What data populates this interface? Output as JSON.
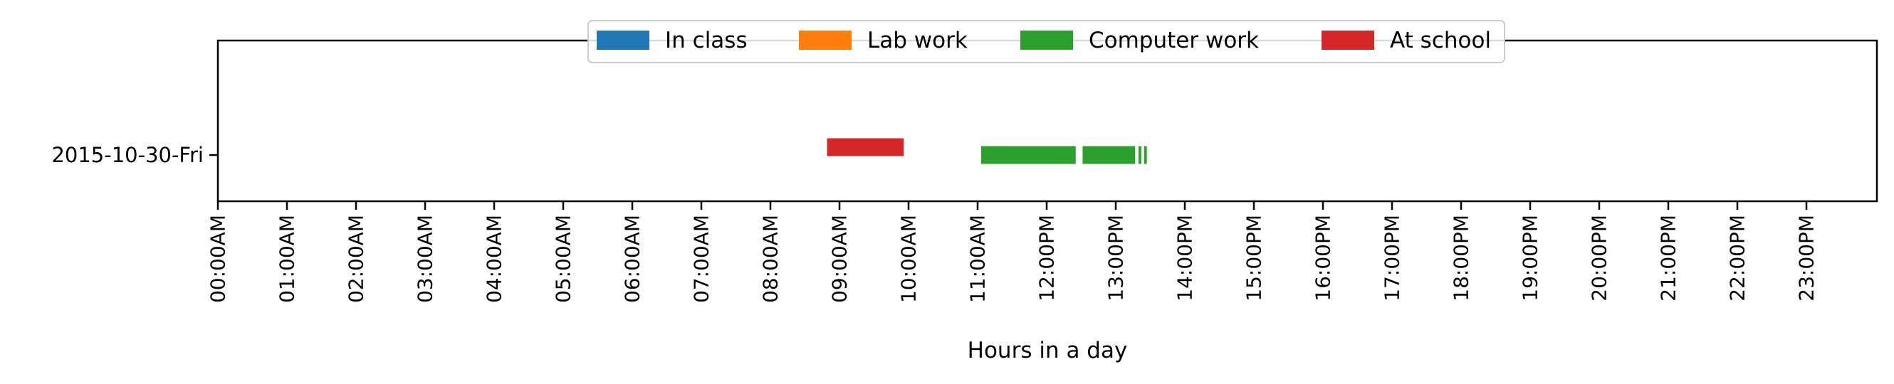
{
  "chart_data": {
    "type": "bar",
    "orientation": "horizontal-timeline",
    "title": "",
    "xlabel": "Hours in a day",
    "ylabel": "",
    "xlim": [
      0,
      24
    ],
    "categories": [
      "2015-10-30-Fri"
    ],
    "x_tick_labels": [
      "00:00AM",
      "01:00AM",
      "02:00AM",
      "03:00AM",
      "04:00AM",
      "05:00AM",
      "06:00AM",
      "07:00AM",
      "08:00AM",
      "09:00AM",
      "10:00AM",
      "11:00AM",
      "12:00PM",
      "13:00PM",
      "14:00PM",
      "15:00PM",
      "16:00PM",
      "17:00PM",
      "18:00PM",
      "19:00PM",
      "20:00PM",
      "21:00PM",
      "22:00PM",
      "23:00PM"
    ],
    "grid": false,
    "legend_position": "top-center",
    "series": [
      {
        "name": "In class",
        "color": "#1f77b4",
        "offset": 0,
        "intervals": []
      },
      {
        "name": "Lab work",
        "color": "#ff7f0e",
        "offset": 0,
        "intervals": []
      },
      {
        "name": "Computer work",
        "color": "#2ca02c",
        "offset": 0,
        "intervals": [
          [
            11.05,
            12.42
          ],
          [
            12.52,
            13.28
          ],
          [
            13.33,
            13.37
          ],
          [
            13.41,
            13.45
          ]
        ]
      },
      {
        "name": "At school",
        "color": "#d62728",
        "offset": 1,
        "intervals": [
          [
            8.82,
            9.93
          ]
        ]
      }
    ]
  }
}
